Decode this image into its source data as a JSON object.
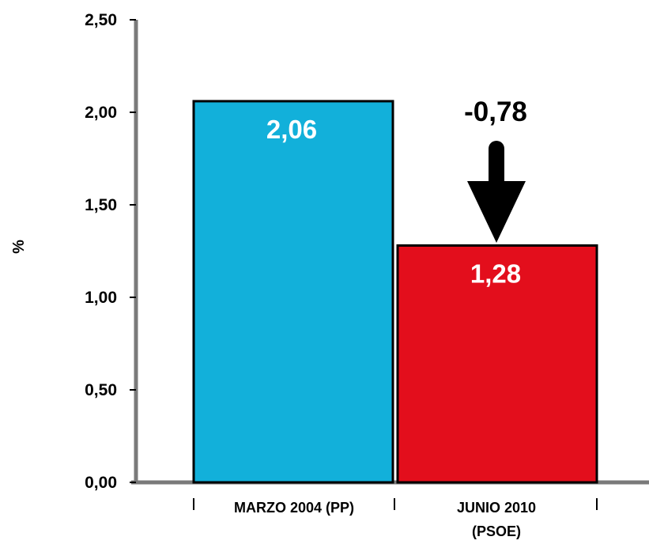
{
  "chart_data": {
    "type": "bar",
    "ylabel": "%",
    "ylim": [
      0,
      2.5
    ],
    "y_ticks": [
      "0,00",
      "0,50",
      "1,00",
      "1,50",
      "2,00",
      "2,50"
    ],
    "y_tick_values": [
      0,
      0.5,
      1.0,
      1.5,
      2.0,
      2.5
    ],
    "categories": [
      [
        "MARZO 2004 (PP)"
      ],
      [
        "JUNIO 2010",
        "(PSOE)"
      ]
    ],
    "values": [
      2.06,
      1.28
    ],
    "value_labels": [
      "2,06",
      "1,28"
    ],
    "colors": [
      "#12b0da",
      "#e30e1c"
    ],
    "annotation": {
      "text": "-0,78",
      "arrow": "down"
    },
    "grid": false
  }
}
